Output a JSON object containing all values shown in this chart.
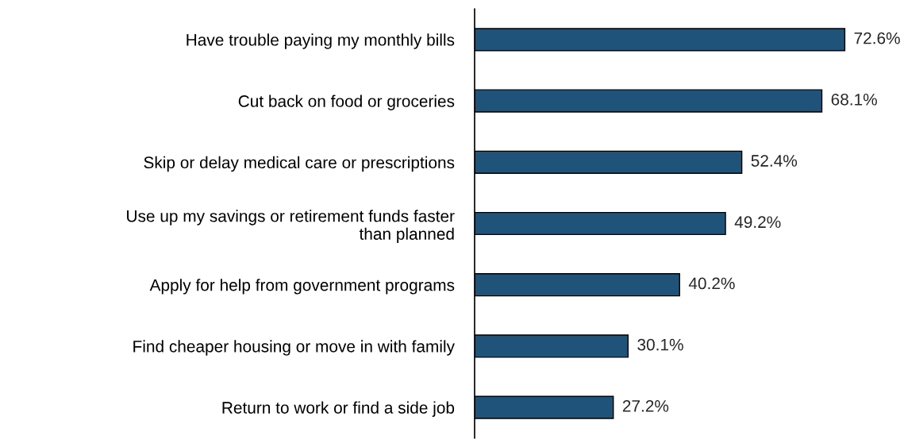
{
  "chart_data": {
    "type": "bar",
    "orientation": "horizontal",
    "categories": [
      "Have trouble paying my monthly bills",
      "Cut back on food or groceries",
      "Skip or delay medical care or prescriptions",
      "Use up my savings or retirement funds faster\nthan planned",
      "Apply for help from government programs",
      "Find cheaper housing or move in with family",
      "Return to work or find a side job"
    ],
    "values": [
      72.6,
      68.1,
      52.4,
      49.2,
      40.2,
      30.1,
      27.2
    ],
    "value_labels": [
      "72.6%",
      "68.1%",
      "52.4%",
      "49.2%",
      "40.2%",
      "30.1%",
      "27.2%"
    ],
    "color": "#1f5379",
    "grid": false,
    "legend": false
  }
}
